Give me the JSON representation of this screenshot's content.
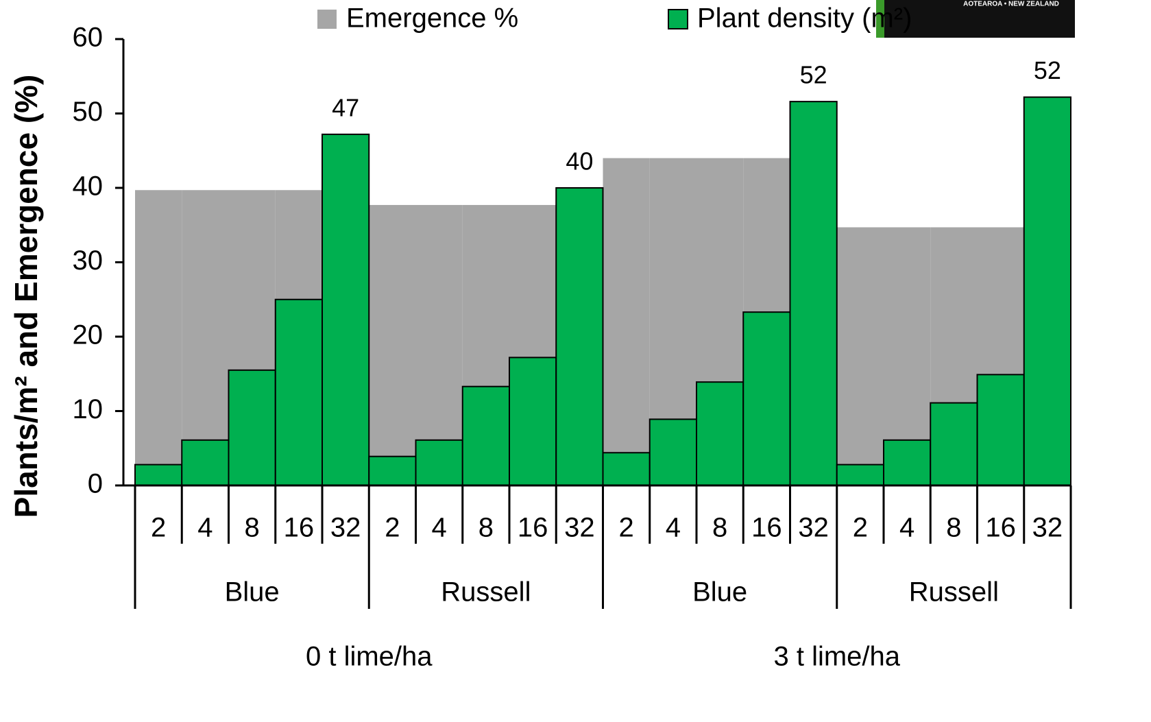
{
  "chart_data": {
    "type": "bar",
    "y_label": "Plants/m² and Emergence (%)",
    "categories": [
      "2",
      "4",
      "8",
      "16",
      "32",
      "2",
      "4",
      "8",
      "16",
      "32",
      "2",
      "4",
      "8",
      "16",
      "32",
      "2",
      "4",
      "8",
      "16",
      "32"
    ],
    "group_labels": [
      "Blue",
      "Russell",
      "Blue",
      "Russell"
    ],
    "supergroup_labels": [
      "0 t lime/ha",
      "3 t lime/ha"
    ],
    "series": [
      {
        "name": "Emergence %",
        "color": "#a6a6a6",
        "values": [
          39.7,
          39.7,
          39.7,
          39.7,
          39.7,
          37.7,
          37.7,
          37.7,
          37.7,
          37.7,
          44.0,
          44.0,
          44.0,
          44.0,
          44.0,
          34.7,
          34.7,
          34.7,
          34.7,
          34.7
        ]
      },
      {
        "name": "Plant density (m²)",
        "color": "#00b050",
        "values": [
          2.8,
          6.1,
          15.5,
          25.0,
          47.2,
          3.9,
          6.1,
          13.3,
          17.2,
          40.0,
          4.4,
          8.9,
          13.9,
          23.3,
          51.6,
          2.8,
          6.1,
          11.1,
          14.9,
          52.2
        ],
        "value_labels": [
          null,
          null,
          null,
          null,
          "47",
          null,
          null,
          null,
          null,
          "40",
          null,
          null,
          null,
          null,
          "52",
          null,
          null,
          null,
          null,
          "52"
        ]
      }
    ],
    "ylim": [
      0,
      60
    ],
    "yticks": [
      0,
      10,
      20,
      30,
      40,
      50,
      60
    ],
    "grid": false
  },
  "logo": {
    "text": "AOTEAROA • NEW ZEALAND"
  }
}
